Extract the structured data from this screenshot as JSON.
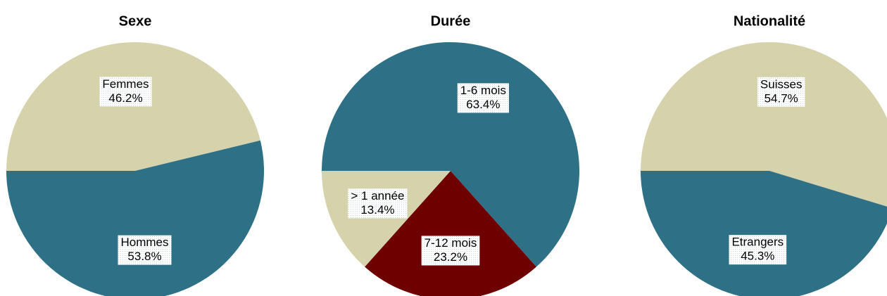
{
  "chart_data": [
    {
      "type": "pie",
      "title": "Sexe",
      "categories": [
        "Femmes",
        "Hommes"
      ],
      "values": [
        46.2,
        53.8
      ],
      "value_labels": [
        "46.2%",
        "53.8%"
      ],
      "colors": [
        "#d6d3ac",
        "#2e7186"
      ]
    },
    {
      "type": "pie",
      "title": "Durée",
      "categories": [
        "1-6 mois",
        "7-12 mois",
        "> 1 année"
      ],
      "values": [
        63.4,
        23.2,
        13.4
      ],
      "value_labels": [
        "63.4%",
        "23.2%",
        "13.4%"
      ],
      "colors": [
        "#2e7186",
        "#6e0000",
        "#d6d3ac"
      ]
    },
    {
      "type": "pie",
      "title": "Nationalité",
      "categories": [
        "Suisses",
        "Etrangers"
      ],
      "values": [
        54.7,
        45.3
      ],
      "value_labels": [
        "54.7%",
        "45.3%"
      ],
      "colors": [
        "#d6d3ac",
        "#2e7186"
      ]
    }
  ]
}
